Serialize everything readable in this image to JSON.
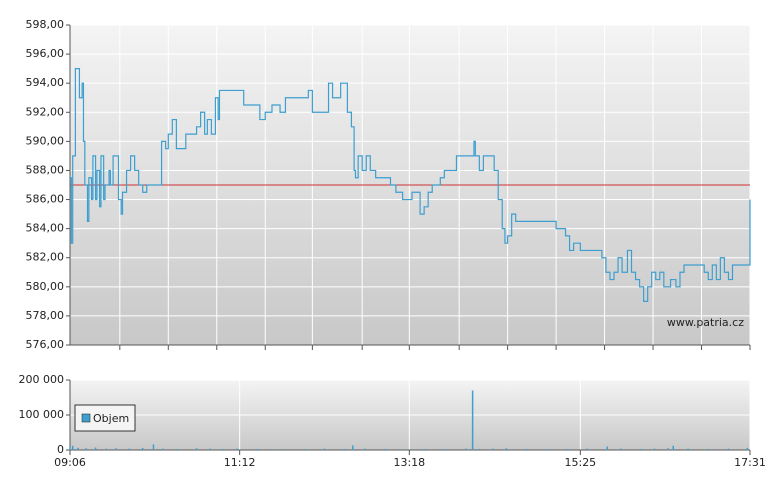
{
  "chart_data": [
    {
      "type": "line",
      "x": [
        "09:06",
        "09:07",
        "09:08",
        "09:10",
        "09:13",
        "09:15",
        "09:16",
        "09:17",
        "09:19",
        "09:20",
        "09:22",
        "09:23",
        "09:25",
        "09:26",
        "09:28",
        "09:29",
        "09:31",
        "09:32",
        "09:35",
        "09:36",
        "09:38",
        "09:41",
        "09:42",
        "09:44",
        "09:45",
        "09:48",
        "09:51",
        "09:54",
        "09:57",
        "10:00",
        "10:03",
        "10:08",
        "10:13",
        "10:14",
        "10:17",
        "10:19",
        "10:22",
        "10:25",
        "10:32",
        "10:40",
        "10:43",
        "10:46",
        "10:48",
        "10:51",
        "10:54",
        "10:56",
        "10:57",
        "11:12",
        "11:15",
        "11:27",
        "11:31",
        "11:36",
        "11:42",
        "11:46",
        "12:03",
        "12:06",
        "12:18",
        "12:21",
        "12:27",
        "12:32",
        "12:35",
        "12:37",
        "12:38",
        "12:40",
        "12:43",
        "12:46",
        "12:49",
        "12:53",
        "13:04",
        "13:08",
        "13:13",
        "13:20",
        "13:26",
        "13:29",
        "13:32",
        "13:35",
        "13:41",
        "13:44",
        "13:53",
        "14:06",
        "14:07",
        "14:10",
        "14:13",
        "14:21",
        "14:24",
        "14:27",
        "14:29",
        "14:31",
        "14:34",
        "14:37",
        "15:07",
        "15:14",
        "15:17",
        "15:20",
        "15:25",
        "15:41",
        "15:44",
        "15:47",
        "15:50",
        "15:53",
        "15:56",
        "16:00",
        "16:03",
        "16:06",
        "16:09",
        "16:12",
        "16:15",
        "16:18",
        "16:21",
        "16:24",
        "16:27",
        "16:32",
        "16:36",
        "16:39",
        "16:42",
        "16:57",
        "17:00",
        "17:03",
        "17:06",
        "17:09",
        "17:12",
        "17:15",
        "17:18",
        "17:29",
        "17:31"
      ],
      "values": [
        587.5,
        583,
        589,
        595,
        593,
        594,
        590,
        587,
        584.5,
        587.5,
        586,
        589,
        586,
        588,
        585.5,
        589,
        586,
        587,
        588,
        587,
        589,
        589,
        586,
        585,
        586.5,
        588,
        589,
        588,
        587,
        586.5,
        587,
        587,
        587,
        590,
        589.5,
        590.5,
        591.5,
        589.5,
        590.5,
        591,
        592,
        590.5,
        591.5,
        590.5,
        593,
        591.5,
        593.5,
        593.5,
        592.5,
        591.5,
        592,
        592.5,
        592,
        593,
        593.5,
        592,
        594,
        593,
        594,
        592,
        591,
        588,
        587.5,
        589,
        588,
        589,
        588,
        587.5,
        587,
        586.5,
        586,
        586.5,
        585,
        585.5,
        586.5,
        587,
        587.5,
        588,
        589,
        590,
        589,
        588,
        589,
        588,
        586,
        584,
        583,
        583.5,
        585,
        584.5,
        584,
        583.5,
        582.5,
        583,
        582.5,
        582,
        581,
        580.5,
        581,
        582,
        581,
        582.5,
        581,
        580.5,
        580,
        579,
        580,
        581,
        580.5,
        581,
        580,
        580.5,
        580,
        581,
        581.5,
        581,
        580.5,
        581.5,
        580.5,
        582,
        581,
        580.5,
        581.5,
        581.5,
        586
      ],
      "color": "#3d9fd0",
      "xlim": [
        "09:06",
        "17:31"
      ],
      "xticks": [
        "09:43",
        "10:19",
        "10:55",
        "11:31",
        "12:06",
        "12:43",
        "13:18",
        "13:55",
        "14:31",
        "15:07",
        "15:43",
        "16:19",
        "16:55",
        "17:31"
      ],
      "ylim": [
        576,
        598
      ],
      "yticks": [
        {
          "value": 576,
          "label": "576,00"
        },
        {
          "value": 578,
          "label": "578,00"
        },
        {
          "value": 580,
          "label": "580,00"
        },
        {
          "value": 582,
          "label": "582,00"
        },
        {
          "value": 584,
          "label": "584,00"
        },
        {
          "value": 586,
          "label": "586,00"
        },
        {
          "value": 588,
          "label": "588,00"
        },
        {
          "value": 590,
          "label": "590,00"
        },
        {
          "value": 592,
          "label": "592,00"
        },
        {
          "value": 594,
          "label": "594,00"
        },
        {
          "value": 596,
          "label": "596,00"
        },
        {
          "value": 598,
          "label": "598,00"
        }
      ],
      "hline": {
        "value": 587,
        "color": "#d03030"
      },
      "annotation": "www.patria.cz",
      "grid": true
    },
    {
      "type": "bar",
      "x": [
        "09:06",
        "09:08",
        "09:12",
        "09:18",
        "09:25",
        "09:33",
        "09:40",
        "09:50",
        "10:00",
        "10:08",
        "10:15",
        "10:25",
        "10:40",
        "10:50",
        "11:00",
        "11:10",
        "11:25",
        "11:40",
        "12:00",
        "12:15",
        "12:30",
        "12:36",
        "12:45",
        "13:00",
        "13:15",
        "13:30",
        "13:45",
        "14:00",
        "14:05",
        "14:10",
        "14:20",
        "14:30",
        "14:45",
        "15:00",
        "15:15",
        "15:30",
        "15:45",
        "15:55",
        "16:10",
        "16:20",
        "16:30",
        "16:34",
        "16:45",
        "17:00",
        "17:15",
        "17:29"
      ],
      "series": [
        {
          "name": "Objem",
          "color": "#3d9fd0",
          "values": [
            8000,
            12000,
            6000,
            5000,
            7000,
            4000,
            5000,
            4000,
            6000,
            16000,
            4000,
            3000,
            5000,
            4000,
            3000,
            4000,
            3000,
            2000,
            3000,
            4000,
            3000,
            13000,
            4000,
            3000,
            2000,
            3000,
            3000,
            4000,
            170000,
            3000,
            4000,
            5000,
            3000,
            3000,
            3000,
            4000,
            10000,
            4000,
            3000,
            4000,
            5000,
            12000,
            4000,
            3000,
            4000,
            6000
          ]
        }
      ],
      "xlim": [
        "09:06",
        "17:31"
      ],
      "xticks": [
        "09:06",
        "11:12",
        "13:18",
        "15:25",
        "17:31"
      ],
      "ylim": [
        0,
        200000
      ],
      "yticks": [
        0,
        {
          "value": 100000,
          "label": "100 000"
        },
        {
          "value": 200000,
          "label": "200 000"
        }
      ],
      "legend": "upper left",
      "grid": true
    }
  ]
}
